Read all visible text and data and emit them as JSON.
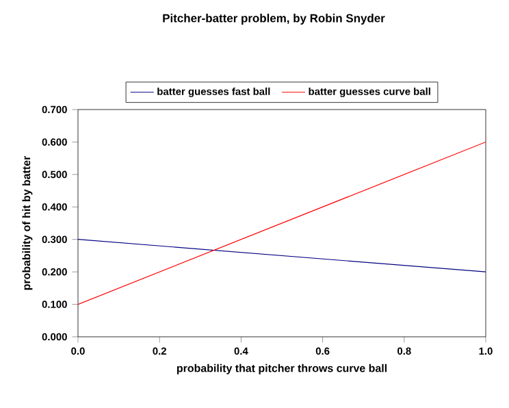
{
  "chart_data": {
    "type": "line",
    "title": "Pitcher-batter problem, by Robin Snyder",
    "xlabel": "probability that pitcher throws curve ball",
    "ylabel": "probability of hit by batter",
    "x": [
      0,
      1
    ],
    "series": [
      {
        "name": "batter guesses fast ball",
        "color": "#000080",
        "values": [
          0.3,
          0.2
        ]
      },
      {
        "name": "batter guesses curve ball",
        "color": "#ff0000",
        "values": [
          0.1,
          0.6
        ]
      }
    ],
    "xlim": [
      0,
      1
    ],
    "ylim": [
      0,
      0.7
    ],
    "xticks": [
      {
        "value": 0,
        "label": "0.0"
      },
      {
        "value": 0.2,
        "label": "0.2"
      },
      {
        "value": 0.4,
        "label": "0.4"
      },
      {
        "value": 0.6,
        "label": "0.6"
      },
      {
        "value": 0.8,
        "label": "0.8"
      },
      {
        "value": 1,
        "label": "1.0"
      }
    ],
    "yticks": [
      {
        "value": 0,
        "label": "0.000"
      },
      {
        "value": 0.1,
        "label": "0.100"
      },
      {
        "value": 0.2,
        "label": "0.200"
      },
      {
        "value": 0.3,
        "label": "0.300"
      },
      {
        "value": 0.4,
        "label": "0.400"
      },
      {
        "value": 0.5,
        "label": "0.500"
      },
      {
        "value": 0.6,
        "label": "0.600"
      },
      {
        "value": 0.7,
        "label": "0.700"
      }
    ],
    "grid": false,
    "legend": "top",
    "marker": "none",
    "line_style": "solid"
  }
}
